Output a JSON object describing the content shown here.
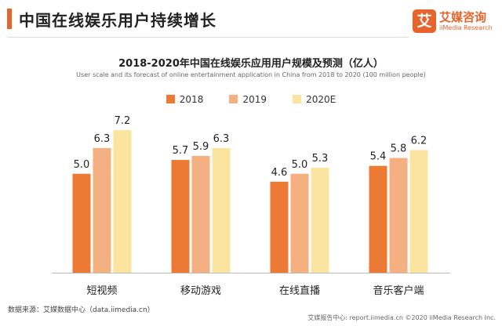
{
  "header": {
    "title": "中国在线娱乐用户持续增长",
    "logo_mark": "艾",
    "logo_name": "艾媒咨询",
    "logo_sub": "iiMedia Research"
  },
  "colors": {
    "accent": "#e8632b",
    "series": [
      "#ec7a35",
      "#f4b080",
      "#fbe3a0"
    ]
  },
  "chart_data": {
    "type": "bar",
    "title": "2018-2020年中国在线娱乐应用用户规模及预测（亿人）",
    "subtitle": "User scale and its forecast of online entertainment application in China from 2018 to 2020 (100 million people)",
    "categories": [
      "短视频",
      "移动游戏",
      "在线直播",
      "音乐客户端"
    ],
    "series": [
      {
        "name": "2018",
        "values": [
          5.0,
          5.7,
          4.6,
          5.4
        ]
      },
      {
        "name": "2019",
        "values": [
          6.3,
          5.9,
          5.0,
          5.8
        ]
      },
      {
        "name": "2020E",
        "values": [
          7.2,
          6.3,
          5.3,
          6.2
        ]
      }
    ],
    "value_labels": [
      [
        "5.0",
        "5.7",
        "4.6",
        "5.4"
      ],
      [
        "6.3",
        "5.9",
        "5.0",
        "5.8"
      ],
      [
        "7.2",
        "6.3",
        "5.3",
        "6.2"
      ]
    ],
    "ylim": [
      0,
      8
    ],
    "grid": false,
    "legend_position": "top-center"
  },
  "footer": {
    "source": "数据来源：艾媒数据中心（data.iimedia.cn）",
    "copyright": "艾媒报告中心: report.iimedia.cn  ©2020  iiMedia Research Inc."
  }
}
